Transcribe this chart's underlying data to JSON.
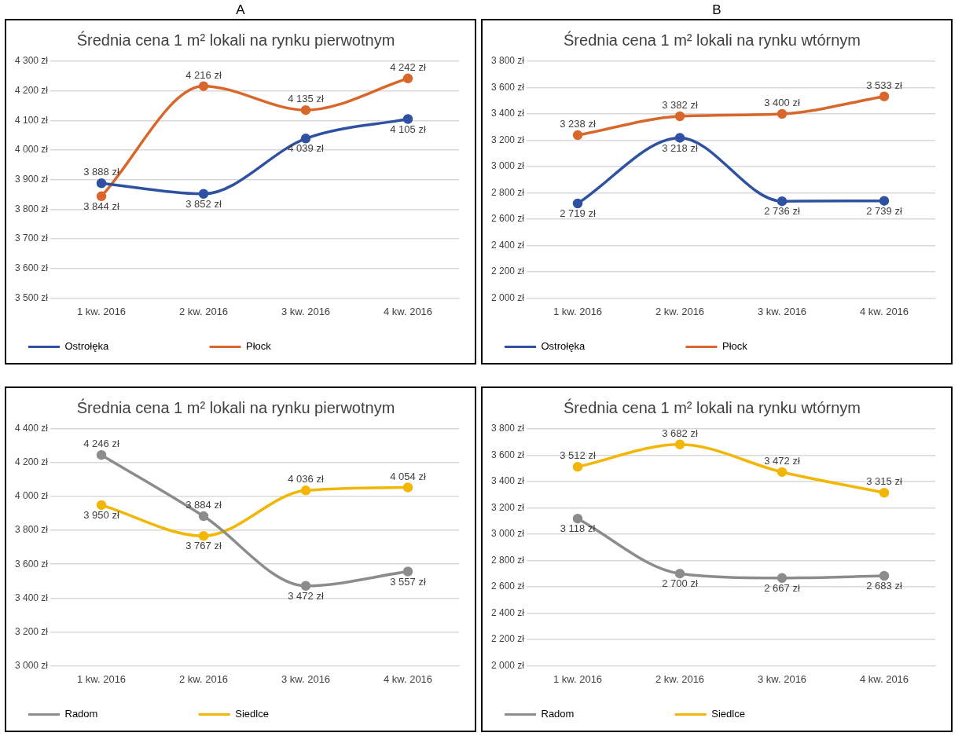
{
  "chart_data": [
    {
      "type": "line",
      "title": "Średnia cena 1 m² lokali na rynku pierwotnym",
      "annotations": [
        "A"
      ],
      "categories": [
        "1 kw. 2016",
        "2 kw. 2016",
        "3 kw. 2016",
        "4 kw. 2016"
      ],
      "series": [
        {
          "name": "Ostrołęka",
          "color": "#2e51a2",
          "values": [
            3888,
            3852,
            4039,
            4105
          ],
          "value_labels": [
            "3 888 zł",
            "3 852 zł",
            "4 039 zł",
            "4 105 zł"
          ]
        },
        {
          "name": "Płock",
          "color": "#d9662a",
          "values": [
            3844,
            4216,
            4135,
            4242
          ],
          "value_labels": [
            "3 844 zł",
            "4 216 zł",
            "4 135 zł",
            "4 242 zł"
          ]
        }
      ],
      "ylim": [
        3500,
        4300
      ],
      "yticks": [
        {
          "value": 3500,
          "label": "3 500 zł"
        },
        {
          "value": 3600,
          "label": "3 600 zł"
        },
        {
          "value": 3700,
          "label": "3 700 zł"
        },
        {
          "value": 3800,
          "label": "3 800 zł"
        },
        {
          "value": 3900,
          "label": "3 900 zł"
        },
        {
          "value": 4000,
          "label": "4 000 zł"
        },
        {
          "value": 4100,
          "label": "4 100 zł"
        },
        {
          "value": 4200,
          "label": "4 200 zł"
        },
        {
          "value": 4300,
          "label": "4 300 zł"
        }
      ],
      "grid": "y",
      "legend": "bottom",
      "marker": "circle",
      "line_style": "solid"
    },
    {
      "type": "line",
      "title": "Średnia cena 1 m² lokali na rynku wtórnym",
      "annotations": [
        "B"
      ],
      "categories": [
        "1 kw. 2016",
        "2 kw. 2016",
        "3 kw. 2016",
        "4 kw. 2016"
      ],
      "series": [
        {
          "name": "Ostrołęka",
          "color": "#2e51a2",
          "values": [
            2719,
            3218,
            2736,
            2739
          ],
          "value_labels": [
            "2 719 zł",
            "3 218 zł",
            "2 736 zł",
            "2 739 zł"
          ]
        },
        {
          "name": "Płock",
          "color": "#d9662a",
          "values": [
            3238,
            3382,
            3400,
            3533
          ],
          "value_labels": [
            "3 238 zł",
            "3 382 zł",
            "3 400 zł",
            "3 533 zł"
          ]
        }
      ],
      "ylim": [
        2000,
        3800
      ],
      "yticks": [
        {
          "value": 2000,
          "label": "2 000 zł"
        },
        {
          "value": 2200,
          "label": "2 200 zł"
        },
        {
          "value": 2400,
          "label": "2 400 zł"
        },
        {
          "value": 2600,
          "label": "2 600 zł"
        },
        {
          "value": 2800,
          "label": "2 800 zł"
        },
        {
          "value": 3000,
          "label": "3 000 zł"
        },
        {
          "value": 3200,
          "label": "3 200 zł"
        },
        {
          "value": 3400,
          "label": "3 400 zł"
        },
        {
          "value": 3600,
          "label": "3 600 zł"
        },
        {
          "value": 3800,
          "label": "3 800 zł"
        }
      ],
      "grid": "y",
      "legend": "bottom",
      "marker": "circle",
      "line_style": "solid"
    },
    {
      "type": "line",
      "title": "Średnia cena 1 m² lokali na rynku pierwotnym",
      "categories": [
        "1 kw. 2016",
        "2 kw. 2016",
        "3 kw. 2016",
        "4 kw. 2016"
      ],
      "series": [
        {
          "name": "Radom",
          "color": "#8c8c8c",
          "values": [
            4246,
            3884,
            3472,
            3557
          ],
          "value_labels": [
            "4 246 zł",
            "3 884 zł",
            "3 472 zł",
            "3 557 zł"
          ]
        },
        {
          "name": "Siedlce",
          "color": "#f2b705",
          "values": [
            3950,
            3767,
            4036,
            4054
          ],
          "value_labels": [
            "3 950 zł",
            "3 767 zł",
            "4 036 zł",
            "4 054 zł"
          ]
        }
      ],
      "ylim": [
        3000,
        4400
      ],
      "yticks": [
        {
          "value": 3000,
          "label": "3 000 zł"
        },
        {
          "value": 3200,
          "label": "3 200 zł"
        },
        {
          "value": 3400,
          "label": "3 400 zł"
        },
        {
          "value": 3600,
          "label": "3 600 zł"
        },
        {
          "value": 3800,
          "label": "3 800 zł"
        },
        {
          "value": 4000,
          "label": "4 000 zł"
        },
        {
          "value": 4200,
          "label": "4 200 zł"
        },
        {
          "value": 4400,
          "label": "4 400 zł"
        }
      ],
      "grid": "y",
      "legend": "bottom",
      "marker": "circle",
      "line_style": "solid"
    },
    {
      "type": "line",
      "title": "Średnia cena 1 m² lokali na rynku wtórnym",
      "categories": [
        "1 kw. 2016",
        "2 kw. 2016",
        "3 kw. 2016",
        "4 kw. 2016"
      ],
      "series": [
        {
          "name": "Radom",
          "color": "#8c8c8c",
          "values": [
            3118,
            2700,
            2667,
            2683
          ],
          "value_labels": [
            "3 118 zł",
            "2 700 zł",
            "2 667 zł",
            "2 683 zł"
          ]
        },
        {
          "name": "Siedlce",
          "color": "#f2b705",
          "values": [
            3512,
            3682,
            3472,
            3315
          ],
          "value_labels": [
            "3 512 zł",
            "3 682 zł",
            "3 472 zł",
            "3 315 zł"
          ]
        }
      ],
      "ylim": [
        2000,
        3800
      ],
      "yticks": [
        {
          "value": 2000,
          "label": "2 000 zł"
        },
        {
          "value": 2200,
          "label": "2 200 zł"
        },
        {
          "value": 2400,
          "label": "2 400 zł"
        },
        {
          "value": 2600,
          "label": "2 600 zł"
        },
        {
          "value": 2800,
          "label": "2 800 zł"
        },
        {
          "value": 3000,
          "label": "3 000 zł"
        },
        {
          "value": 3200,
          "label": "3 200 zł"
        },
        {
          "value": 3400,
          "label": "3 400 zł"
        },
        {
          "value": 3600,
          "label": "3 600 zł"
        },
        {
          "value": 3800,
          "label": "3 800 zł"
        }
      ],
      "grid": "y",
      "legend": "bottom",
      "marker": "circle",
      "line_style": "solid"
    }
  ]
}
